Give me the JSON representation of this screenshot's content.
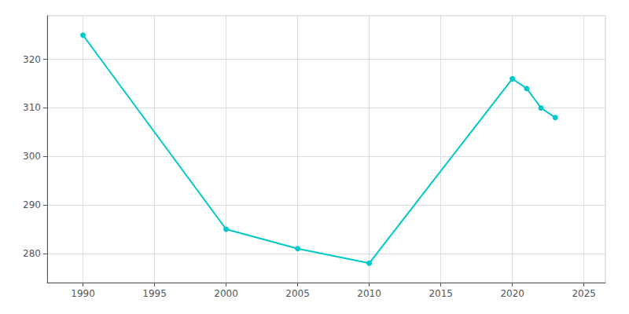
{
  "chart_data": {
    "type": "line",
    "x": [
      1990,
      2000,
      2005,
      2010,
      2020,
      2021,
      2022,
      2023
    ],
    "values": [
      325,
      285,
      281,
      278,
      316,
      314,
      310,
      308
    ],
    "color": "#00C8C8",
    "marker": "circle",
    "xlim": [
      1987.5,
      2026.5
    ],
    "xticks": [
      1990,
      1995,
      2000,
      2005,
      2010,
      2015,
      2020,
      2025
    ],
    "ylim": [
      274,
      329
    ],
    "yticks": [
      280,
      290,
      300,
      310,
      320
    ],
    "grid": true
  }
}
